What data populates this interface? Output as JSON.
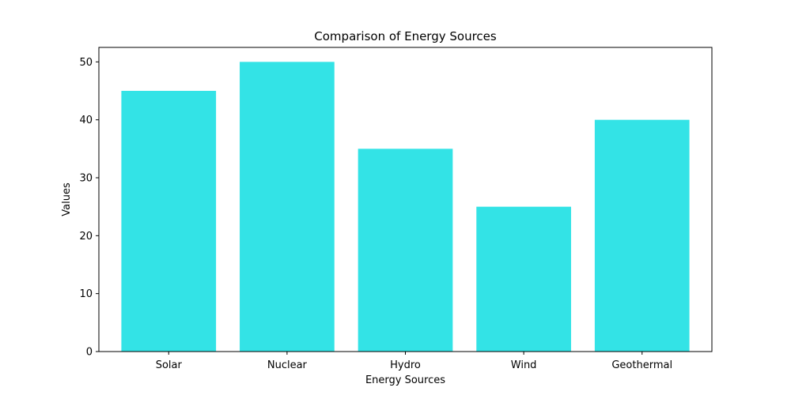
{
  "chart_data": {
    "type": "bar",
    "title": "Comparison of Energy Sources",
    "xlabel": "Energy Sources",
    "ylabel": "Values",
    "categories": [
      "Solar",
      "Nuclear",
      "Hydro",
      "Wind",
      "Geothermal"
    ],
    "values": [
      45,
      50,
      35,
      25,
      40
    ],
    "ylim": [
      0,
      52.5
    ],
    "yticks": [
      "0",
      "10",
      "20",
      "30",
      "40",
      "50"
    ],
    "bar_color": "#33e3e6",
    "grid": false,
    "legend": "none"
  }
}
